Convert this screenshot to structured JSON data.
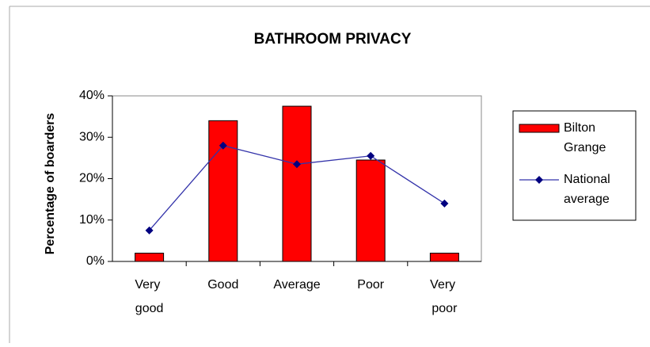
{
  "chart_data": {
    "type": "bar_line",
    "title": "BATHROOM PRIVACY",
    "y_label": "Percentage of boarders",
    "categories": [
      "Very good",
      "Good",
      "Average",
      "Poor",
      "Very poor"
    ],
    "series": [
      {
        "name": "Bilton Grange",
        "type": "bar",
        "color": "#ff0000",
        "values": [
          2,
          34,
          37.5,
          24.5,
          2
        ]
      },
      {
        "name": "National average",
        "type": "line",
        "color": "#000080",
        "values": [
          7.5,
          28,
          23.5,
          25.5,
          14
        ]
      }
    ],
    "ylim": [
      0,
      40
    ],
    "yticks": [
      {
        "value": 0,
        "label": "0%"
      },
      {
        "value": 10,
        "label": "10%"
      },
      {
        "value": 20,
        "label": "20%"
      },
      {
        "value": 30,
        "label": "30%"
      },
      {
        "value": 40,
        "label": "40%"
      }
    ],
    "legend": "right"
  }
}
